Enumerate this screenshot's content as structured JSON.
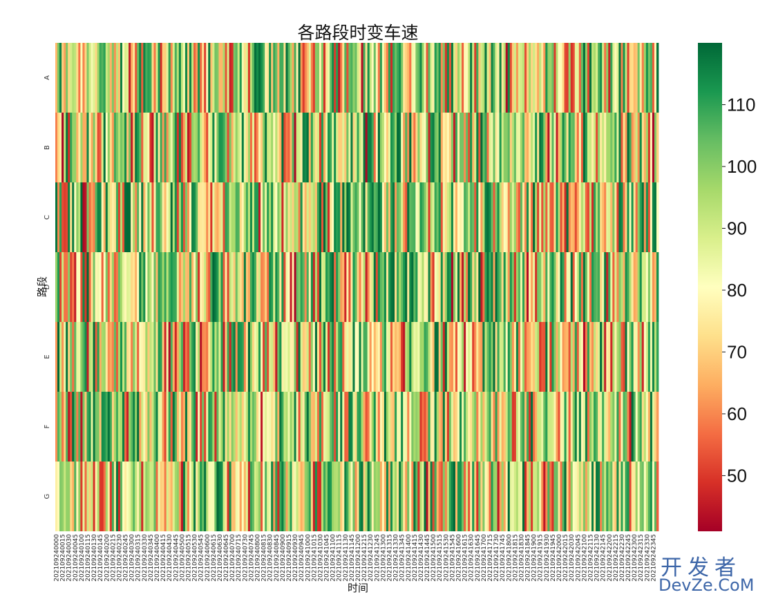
{
  "chart_data": {
    "type": "heatmap",
    "title": "各路段时变车速",
    "xlabel": "时间",
    "ylabel": "路段",
    "rows": [
      "A",
      "B",
      "C",
      "D",
      "E",
      "F",
      "G"
    ],
    "time_start": "202109240000",
    "time_interval_minutes": 5,
    "time_count": 288,
    "shown_x_ticks": "every 3rd time label (15-minute steps)",
    "colormap": "RdYlGn",
    "color_range": [
      41,
      120
    ],
    "colorbar_ticks": [
      50,
      60,
      70,
      80,
      90,
      100,
      110
    ],
    "colorbar_colors": [
      "#a50026",
      "#d73027",
      "#f46d43",
      "#fdae61",
      "#fee08b",
      "#ffffbf",
      "#d9ef8b",
      "#a6d96a",
      "#66bd63",
      "#1a9850",
      "#006837"
    ],
    "values_note": "per-cell speeds visibly vary between ~41 and ~120 with no readable per-cell labels"
  },
  "watermark": {
    "cn": "开发者",
    "en": "DevZe.CoM"
  }
}
